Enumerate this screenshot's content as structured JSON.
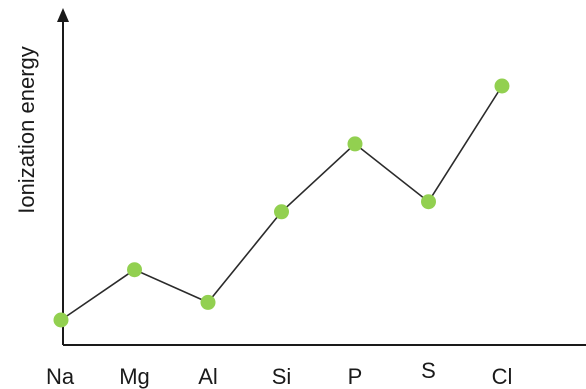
{
  "chart_data": {
    "type": "line",
    "title": "",
    "xlabel": "",
    "ylabel": "Ionization energy",
    "categories": [
      "Na",
      "Mg",
      "Al",
      "Si",
      "P",
      "S",
      "Cl"
    ],
    "series": [
      {
        "values": [
          0.0,
          0.2,
          0.07,
          0.43,
          0.7,
          0.47,
          0.93
        ]
      }
    ],
    "ylim": [
      0,
      1.0
    ],
    "y_tick_labels_shown": false,
    "grid": false,
    "legend": "none",
    "colors": {
      "line": "#2b2b2b",
      "marker": "#92d050",
      "axis": "#1a1a1a"
    }
  }
}
